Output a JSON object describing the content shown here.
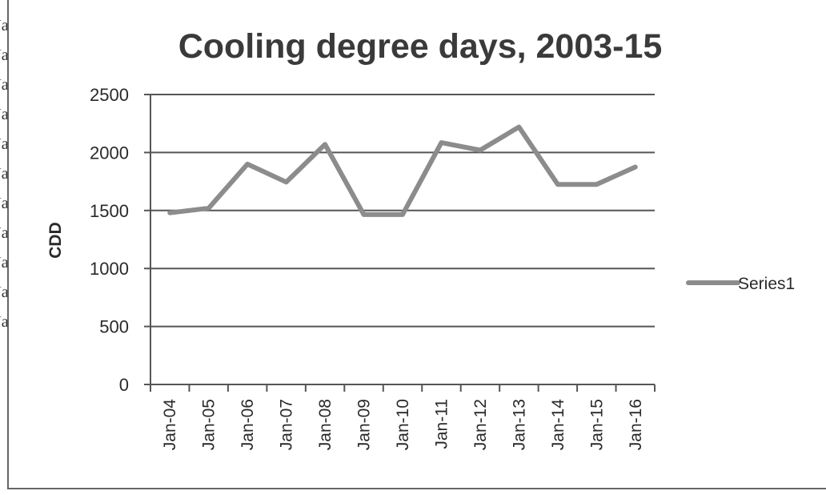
{
  "chart_data": {
    "type": "line",
    "title": "Cooling degree days, 2003-15",
    "xlabel": "",
    "ylabel": "CDD",
    "categories": [
      "Jan-04",
      "Jan-05",
      "Jan-06",
      "Jan-07",
      "Jan-08",
      "Jan-09",
      "Jan-10",
      "Jan-11",
      "Jan-12",
      "Jan-13",
      "Jan-14",
      "Jan-15",
      "Jan-16"
    ],
    "series": [
      {
        "name": "Series1",
        "color": "#8c8c8c",
        "points": [
          {
            "x": "Jan-04",
            "y": 1480
          },
          {
            "x": "Jan-05",
            "y": 1520
          },
          {
            "x": "Jan-06",
            "y": 1900
          },
          {
            "x": "Jan-07",
            "y": 1745
          },
          {
            "x": "Jan-08",
            "y": 2070
          },
          {
            "x": "Jan-09",
            "y": 1465
          },
          {
            "x": "Jan-10",
            "y": 1465
          },
          {
            "x": "Jan-11",
            "y": 2085
          },
          {
            "x": "Jan-12",
            "y": 2020
          },
          {
            "x": "Jan-13",
            "y": 2220
          },
          {
            "x": "Jan-14",
            "y": 1725
          },
          {
            "x": "Jan-15",
            "y": 1725
          },
          {
            "x": "Jan-16",
            "y": 1875
          }
        ]
      }
    ],
    "yticks": [
      0,
      500,
      1000,
      1500,
      2000,
      2500
    ],
    "ylim": [
      0,
      2500
    ],
    "grid": true,
    "legend": "right"
  },
  "left_fragments": [
    "Ja",
    "Ja",
    "Ja",
    "Ja",
    "Ja",
    "Ja",
    "Ja",
    "Ja",
    "Ja",
    "Ja",
    "Ja"
  ]
}
